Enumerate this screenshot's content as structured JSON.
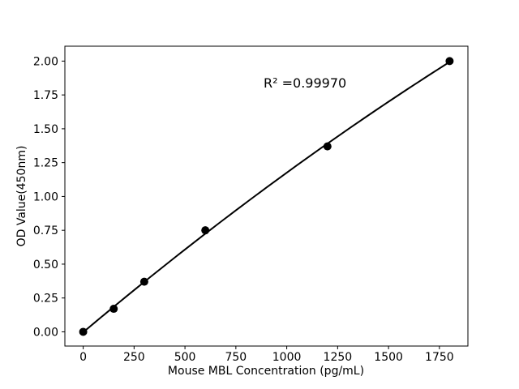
{
  "chart_data": {
    "type": "scatter",
    "title": "",
    "xlabel": "Mouse MBL Concentration (pg/mL)",
    "ylabel": "OD Value(450nm)",
    "x": [
      0,
      150,
      300,
      600,
      1200,
      1800
    ],
    "y": [
      0.0,
      0.17,
      0.37,
      0.75,
      1.37,
      2.0
    ],
    "xticks": [
      0,
      250,
      500,
      750,
      1000,
      1250,
      1500,
      1750
    ],
    "ytick_labels": [
      "0.00",
      "0.25",
      "0.50",
      "0.75",
      "1.00",
      "1.25",
      "1.50",
      "1.75",
      "2.00"
    ],
    "xlim": [
      -90,
      1890
    ],
    "ylim": [
      -0.105,
      2.11
    ],
    "grid": false,
    "legend_position": "none",
    "trendline": {
      "type": "quadratic",
      "label": "R² =0.99970"
    },
    "annotations": [
      {
        "text": "R² =0.99970"
      }
    ],
    "colors": {
      "marker": "#000000",
      "line": "#000000",
      "spine": "#000000",
      "background": "#ffffff"
    }
  }
}
